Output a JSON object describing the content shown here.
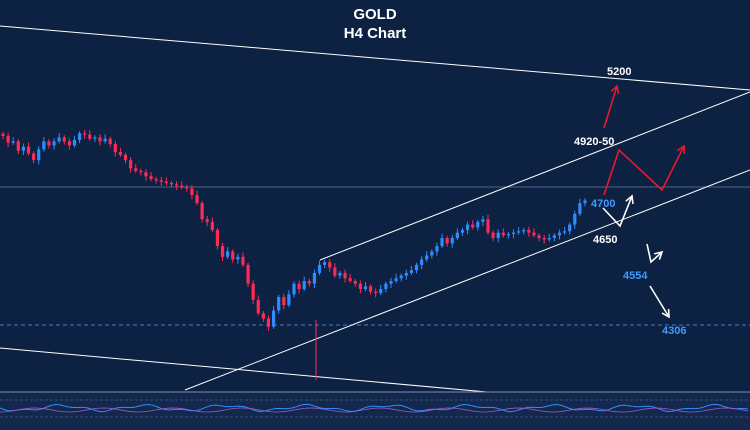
{
  "header": {
    "title": "GOLD",
    "subtitle": "H4 Chart"
  },
  "colors": {
    "background": "#0d2142",
    "bull": "#2f8cff",
    "bear": "#ff2b55",
    "channel": "#ffffff",
    "projection_up": "#e8192c",
    "projection_down": "#ffffff",
    "label_white": "#ffffff",
    "label_blue": "#3d9bff"
  },
  "levels": [
    {
      "id": "5200",
      "text": "5200",
      "color": "label_white"
    },
    {
      "id": "4920",
      "text": "4920-50",
      "color": "label_white"
    },
    {
      "id": "4700",
      "text": "4700",
      "color": "label_blue"
    },
    {
      "id": "4650",
      "text": "4650",
      "color": "label_white"
    },
    {
      "id": "4554",
      "text": "4554",
      "color": "label_blue"
    },
    {
      "id": "4306",
      "text": "4306",
      "color": "label_blue"
    }
  ],
  "chart_data": {
    "type": "candlestick",
    "symbol": "GOLD",
    "timeframe": "H4",
    "series": {
      "close": [
        5010,
        4985,
        4990,
        4955,
        4970,
        4945,
        4920,
        4960,
        4990,
        4975,
        4990,
        5005,
        4990,
        4975,
        4995,
        5020,
        5015,
        5000,
        5005,
        4990,
        5000,
        4980,
        4950,
        4940,
        4920,
        4890,
        4880,
        4875,
        4860,
        4850,
        4845,
        4840,
        4835,
        4830,
        4825,
        4820,
        4815,
        4790,
        4760,
        4700,
        4690,
        4660,
        4600,
        4560,
        4580,
        4550,
        4560,
        4530,
        4460,
        4400,
        4350,
        4330,
        4300,
        4360,
        4410,
        4380,
        4420,
        4460,
        4440,
        4470,
        4460,
        4500,
        4530,
        4540,
        4520,
        4490,
        4500,
        4480,
        4470,
        4460,
        4440,
        4450,
        4430,
        4425,
        4440,
        4460,
        4470,
        4480,
        4490,
        4500,
        4510,
        4530,
        4550,
        4565,
        4580,
        4600,
        4630,
        4610,
        4630,
        4650,
        4660,
        4680,
        4670,
        4690,
        4700,
        4650,
        4630,
        4650,
        4640,
        4645,
        4650,
        4655,
        4660,
        4650,
        4640,
        4630,
        4625,
        4630,
        4640,
        4650,
        4655,
        4680,
        4720,
        4760,
        4770
      ]
    },
    "channel": {
      "upper_target": "4920-50",
      "lower_support": "4650"
    },
    "targets_up": [
      "4920-50",
      "5200"
    ],
    "targets_down": [
      "4650",
      "4554",
      "4306"
    ],
    "horizontal_levels": [
      4700,
      4306
    ]
  }
}
